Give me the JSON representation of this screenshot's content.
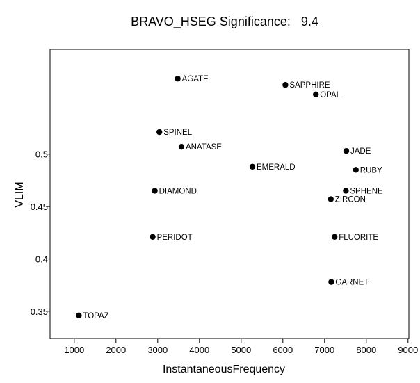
{
  "chart_data": {
    "type": "scatter",
    "title": "BRAVO_HSEG Significance:   9.4",
    "xlabel": "InstantaneousFrequency",
    "ylabel": "VLIM",
    "xlim": [
      420,
      9020
    ],
    "ylim": [
      0.324,
      0.6
    ],
    "xticks": [
      1000,
      2000,
      3000,
      4000,
      5000,
      6000,
      7000,
      8000,
      9000
    ],
    "xtick_labels": [
      "1000",
      "2000",
      "3000",
      "4000",
      "5000",
      "6000",
      "7000",
      "8000",
      "9000"
    ],
    "yticks": [
      0.35,
      0.4,
      0.45,
      0.5
    ],
    "ytick_labels": [
      "0.35",
      "0.4",
      "0.45",
      "0.5"
    ],
    "grid": false,
    "legend": "none",
    "marker_color": "#000000",
    "points": [
      {
        "label": "AGATE",
        "x": 3480,
        "y": 0.572
      },
      {
        "label": "SAPPHIRE",
        "x": 6060,
        "y": 0.566
      },
      {
        "label": "OPAL",
        "x": 6790,
        "y": 0.557
      },
      {
        "label": "SPINEL",
        "x": 3040,
        "y": 0.521
      },
      {
        "label": "ANATASE",
        "x": 3570,
        "y": 0.507
      },
      {
        "label": "JADE",
        "x": 7520,
        "y": 0.503
      },
      {
        "label": "EMERALD",
        "x": 5270,
        "y": 0.488
      },
      {
        "label": "RUBY",
        "x": 7750,
        "y": 0.485
      },
      {
        "label": "DIAMOND",
        "x": 2930,
        "y": 0.465
      },
      {
        "label": "SPHENE",
        "x": 7510,
        "y": 0.465
      },
      {
        "label": "ZIRCON",
        "x": 7150,
        "y": 0.457
      },
      {
        "label": "PERIDOT",
        "x": 2880,
        "y": 0.421
      },
      {
        "label": "FLUORITE",
        "x": 7240,
        "y": 0.421
      },
      {
        "label": "GARNET",
        "x": 7160,
        "y": 0.378
      },
      {
        "label": "TOPAZ",
        "x": 1110,
        "y": 0.346
      }
    ]
  }
}
